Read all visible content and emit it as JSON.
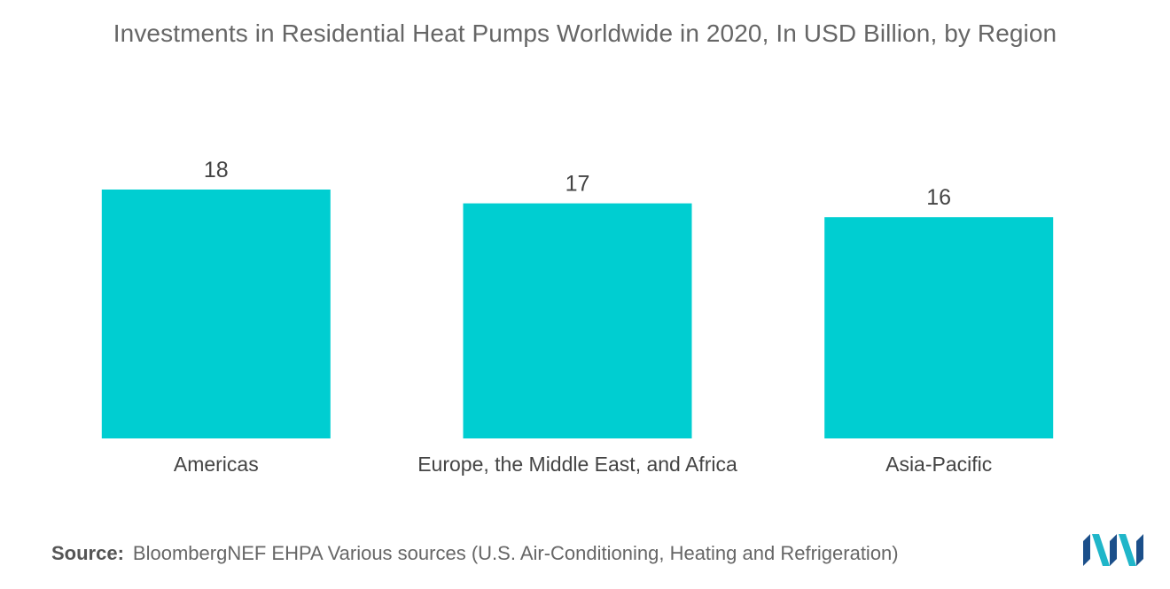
{
  "chart_data": {
    "type": "bar",
    "title": "Investments in Residential Heat Pumps Worldwide in 2020, In USD Billion, by Region",
    "categories": [
      "Americas",
      "Europe, the Middle East, and Africa",
      "Asia-Pacific"
    ],
    "values": [
      18,
      17,
      16
    ],
    "data_labels": [
      "18",
      "17",
      "16"
    ],
    "ylim": [
      0,
      18
    ],
    "grid": false,
    "legend": "none",
    "bar_color": "#00CED1"
  },
  "footer": {
    "source_label": "Source:",
    "source_text": "BloombergNEF EHPA Various sources (U.S. Air-Conditioning, Heating and Refrigeration)"
  },
  "logo": {
    "icon": "mordor-intelligence-logo-icon",
    "colors": [
      "#1b4f8a",
      "#20b6c9"
    ]
  }
}
